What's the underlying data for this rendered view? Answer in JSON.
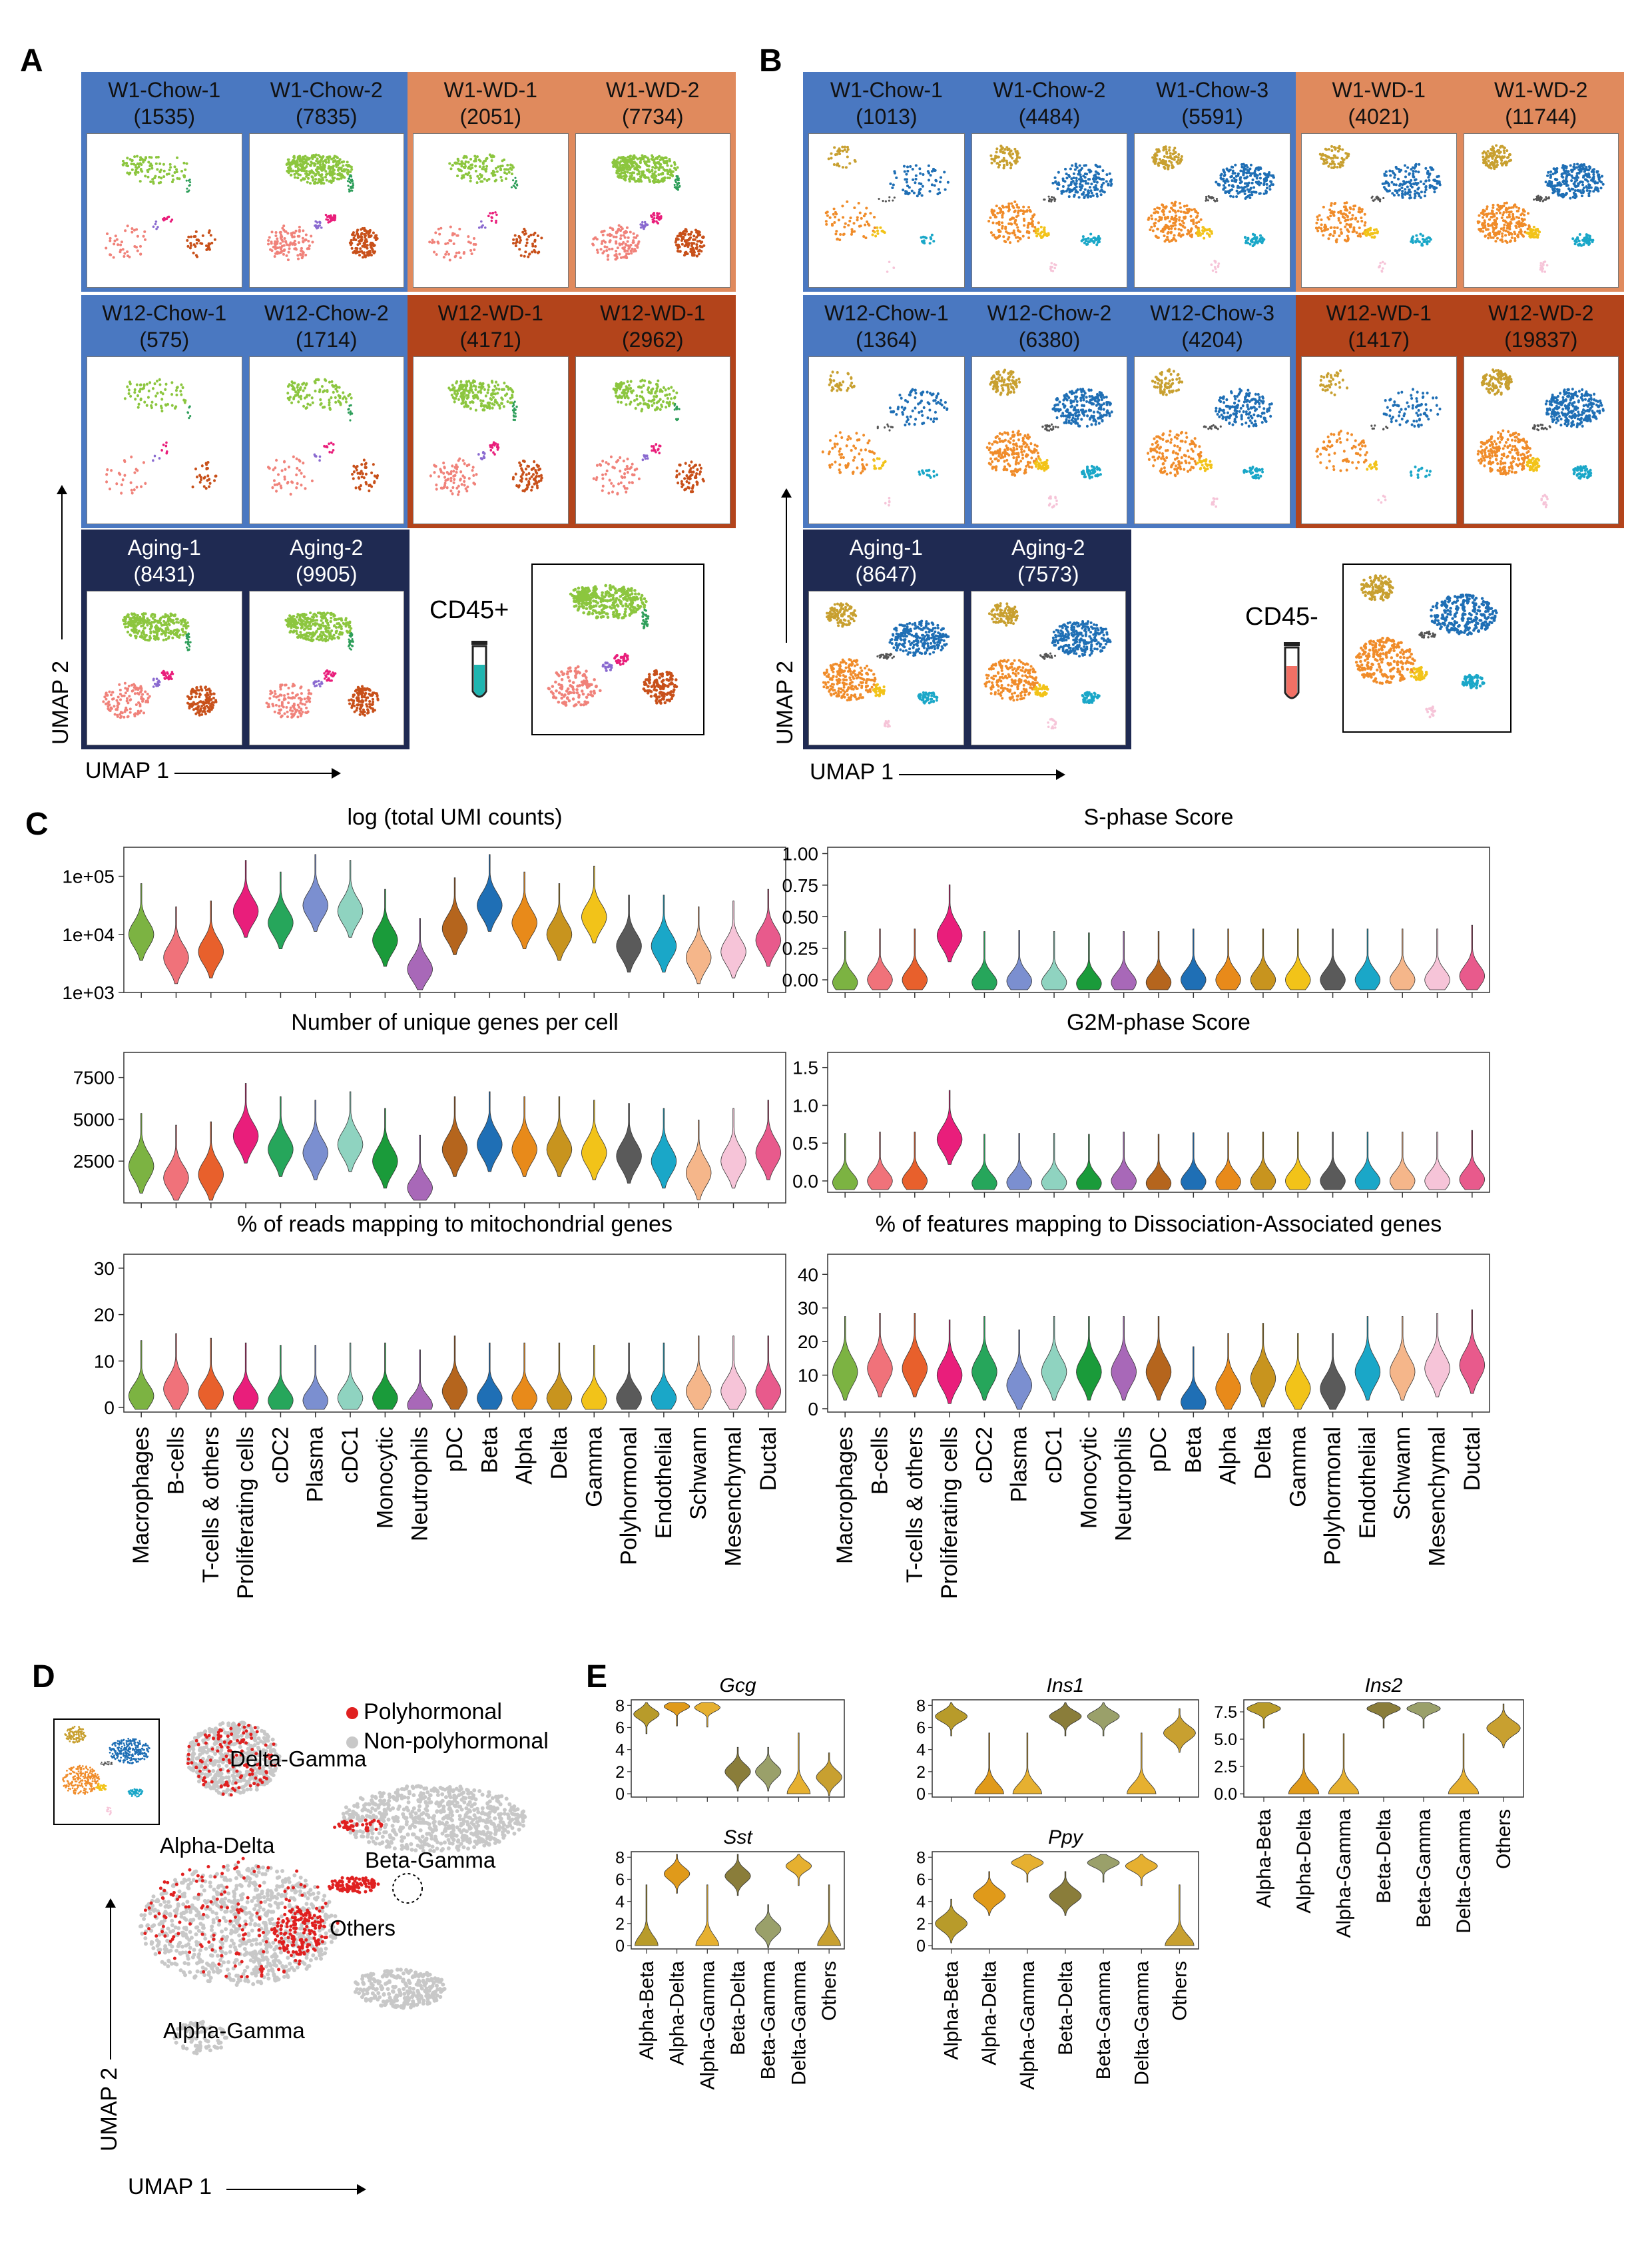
{
  "panelA": {
    "letter": "A",
    "groups": [
      {
        "color": "#4a78c1",
        "samples": [
          {
            "name": "W1-Chow-1",
            "n": "(1535)"
          },
          {
            "name": "W1-Chow-2",
            "n": "(7835)"
          }
        ]
      },
      {
        "color": "#e08a5d",
        "samples": [
          {
            "name": "W1-WD-1",
            "n": "(2051)"
          },
          {
            "name": "W1-WD-2",
            "n": "(7734)"
          }
        ]
      },
      {
        "color": "#4a78c1",
        "samples": [
          {
            "name": "W12-Chow-1",
            "n": "(575)"
          },
          {
            "name": "W12-Chow-2",
            "n": "(1714)"
          }
        ]
      },
      {
        "color": "#b3441b",
        "samples": [
          {
            "name": "W12-WD-1",
            "n": "(4171)"
          },
          {
            "name": "W12-WD-1",
            "n": "(2962)"
          }
        ]
      },
      {
        "color": "#1f2a52",
        "samples": [
          {
            "name": "Aging-1",
            "n": "(8431)"
          },
          {
            "name": "Aging-2",
            "n": "(9905)"
          }
        ]
      }
    ],
    "tube_label": "CD45+",
    "xlabel": "UMAP 1",
    "ylabel": "UMAP 2"
  },
  "panelB": {
    "letter": "B",
    "groups": [
      {
        "color": "#4a78c1",
        "samples": [
          {
            "name": "W1-Chow-1",
            "n": "(1013)"
          },
          {
            "name": "W1-Chow-2",
            "n": "(4484)"
          },
          {
            "name": "W1-Chow-3",
            "n": "(5591)"
          }
        ]
      },
      {
        "color": "#e08a5d",
        "samples": [
          {
            "name": "W1-WD-1",
            "n": "(4021)"
          },
          {
            "name": "W1-WD-2",
            "n": "(11744)"
          }
        ]
      },
      {
        "color": "#4a78c1",
        "samples": [
          {
            "name": "W12-Chow-1",
            "n": "(1364)"
          },
          {
            "name": "W12-Chow-2",
            "n": "(6380)"
          },
          {
            "name": "W12-Chow-3",
            "n": "(4204)"
          }
        ]
      },
      {
        "color": "#b3441b",
        "samples": [
          {
            "name": "W12-WD-1",
            "n": "(1417)"
          },
          {
            "name": "W12-WD-2",
            "n": "(19837)"
          }
        ]
      },
      {
        "color": "#1f2a52",
        "samples": [
          {
            "name": "Aging-1",
            "n": "(8647)"
          },
          {
            "name": "Aging-2",
            "n": "(7573)"
          }
        ]
      }
    ],
    "tube_label": "CD45-",
    "xlabel": "UMAP 1",
    "ylabel": "UMAP 2"
  },
  "panelC": {
    "letter": "C",
    "categories": [
      "Macrophages",
      "B-cells",
      "T-cells & others",
      "Proliferating cells",
      "cDC2",
      "Plasma",
      "cDC1",
      "Monocytic",
      "Neutrophils",
      "pDC",
      "Beta",
      "Alpha",
      "Delta",
      "Gamma",
      "Polyhormonal",
      "Endothelial",
      "Schwann",
      "Mesenchymal",
      "Ductal"
    ],
    "colors": [
      "#7cb342",
      "#f0727a",
      "#e8602c",
      "#e91e7b",
      "#26a65b",
      "#7b8fd0",
      "#8fd3c0",
      "#1a9b3a",
      "#a868b8",
      "#b5651d",
      "#1f6fb5",
      "#e88a1a",
      "#c8941e",
      "#f2c319",
      "#5a5a5a",
      "#1aa7c8",
      "#f5b68a",
      "#f6c4d8",
      "#e85a8c"
    ],
    "chart_data": [
      {
        "type": "violin",
        "title": "log (total UMI counts)",
        "ytick_labels": [
          "1e+03",
          "1e+04",
          "1e+05"
        ],
        "ylim": [
          3,
          5.5
        ],
        "median": [
          4.0,
          3.6,
          3.7,
          4.4,
          4.2,
          4.5,
          4.4,
          3.9,
          3.4,
          4.1,
          4.5,
          4.2,
          4.0,
          4.3,
          3.8,
          3.8,
          3.6,
          3.7,
          3.9
        ]
      },
      {
        "type": "violin",
        "title": "S-phase Score",
        "ytick_labels": [
          "0.00",
          "0.25",
          "0.50",
          "0.75",
          "1.00"
        ],
        "ylim": [
          -0.1,
          1.05
        ],
        "median": [
          -0.02,
          0.0,
          0.0,
          0.35,
          -0.02,
          -0.01,
          -0.02,
          -0.03,
          -0.02,
          -0.02,
          0.0,
          0.0,
          0.0,
          0.0,
          0.0,
          0.0,
          0.0,
          0.0,
          0.03
        ]
      },
      {
        "type": "violin",
        "title": "Number of unique genes per cell",
        "ytick_labels": [
          "2500",
          "5000",
          "7500"
        ],
        "ylim": [
          0,
          9000
        ],
        "median": [
          2200,
          1500,
          1700,
          4000,
          3200,
          3000,
          3500,
          2500,
          900,
          3200,
          3500,
          3200,
          3200,
          3000,
          2800,
          2500,
          1800,
          2500,
          3000
        ]
      },
      {
        "type": "violin",
        "title": "G2M-phase Score",
        "ytick_labels": [
          "0.0",
          "0.5",
          "1.0",
          "1.5"
        ],
        "ylim": [
          -0.15,
          1.7
        ],
        "median": [
          -0.02,
          0.0,
          0.0,
          0.55,
          -0.03,
          -0.02,
          -0.02,
          -0.03,
          0.0,
          -0.03,
          -0.01,
          -0.01,
          0.0,
          0.0,
          0.0,
          0.0,
          0.0,
          0.0,
          0.02
        ]
      },
      {
        "type": "violin",
        "title": "% of reads mapping to mitochondrial genes",
        "ytick_labels": [
          "0",
          "10",
          "20",
          "30"
        ],
        "ylim": [
          -1,
          33
        ],
        "median": [
          2.5,
          4,
          3,
          2,
          1.5,
          1.5,
          2,
          2,
          0.5,
          3.5,
          2,
          2,
          2,
          1.5,
          2,
          2,
          3.5,
          3.5,
          3.5
        ]
      },
      {
        "type": "violin",
        "title": "% of features mapping to Dissociation-Associated genes",
        "ytick_labels": [
          "0",
          "10",
          "20",
          "30",
          "40"
        ],
        "ylim": [
          -1,
          46
        ],
        "median": [
          11,
          12,
          12,
          10,
          11,
          7,
          11,
          11,
          11,
          11,
          2,
          6,
          9,
          6,
          6,
          11,
          11,
          12,
          13
        ]
      }
    ]
  },
  "panelD": {
    "letter": "D",
    "legend": [
      {
        "label": "Polyhormonal",
        "color": "#e02020"
      },
      {
        "label": "Non-polyhormonal",
        "color": "#c8c8c8"
      }
    ],
    "labels": [
      "Delta-Gamma",
      "Alpha-Delta",
      "Beta-Gamma",
      "Others",
      "Alpha-Gamma"
    ],
    "xlabel": "UMAP 1",
    "ylabel": "UMAP 2"
  },
  "panelE": {
    "letter": "E",
    "categories": [
      "Alpha-Beta",
      "Alpha-Delta",
      "Alpha-Gamma",
      "Beta-Delta",
      "Beta-Gamma",
      "Delta-Gamma",
      "Others"
    ],
    "colors": [
      "#b89b2a",
      "#e09a1a",
      "#e6b030",
      "#8a7d3a",
      "#9aa06a",
      "#e6b030",
      "#c8a030"
    ],
    "chart_data": [
      {
        "type": "violin",
        "title": "Gcg",
        "ytick_labels": [
          "0",
          "2",
          "4",
          "6",
          "8"
        ],
        "ylim": [
          -0.3,
          8.5
        ],
        "median": [
          7.2,
          7.9,
          7.8,
          2,
          2,
          0,
          1.5
        ]
      },
      {
        "type": "violin",
        "title": "Ins1",
        "ytick_labels": [
          "0",
          "2",
          "4",
          "6",
          "8"
        ],
        "ylim": [
          -0.3,
          8.5
        ],
        "median": [
          7.0,
          0,
          0,
          7.0,
          7.0,
          0,
          5.5
        ]
      },
      {
        "type": "violin",
        "title": "Ins2",
        "ytick_labels": [
          "0.0",
          "2.5",
          "5.0",
          "7.5"
        ],
        "ylim": [
          -0.3,
          8.6
        ],
        "median": [
          7.8,
          0,
          0,
          7.8,
          7.8,
          0,
          6.0
        ]
      },
      {
        "type": "violin",
        "title": "Sst",
        "ytick_labels": [
          "0",
          "2",
          "4",
          "6",
          "8"
        ],
        "ylim": [
          -0.3,
          8.5
        ],
        "median": [
          0,
          6.5,
          0,
          6.3,
          1.5,
          7.2,
          0
        ]
      },
      {
        "type": "violin",
        "title": "Ppy",
        "ytick_labels": [
          "0",
          "2",
          "4",
          "6",
          "8"
        ],
        "ylim": [
          -0.3,
          8.5
        ],
        "median": [
          2,
          4.5,
          7.5,
          4.5,
          7.5,
          7.2,
          0
        ]
      }
    ]
  }
}
